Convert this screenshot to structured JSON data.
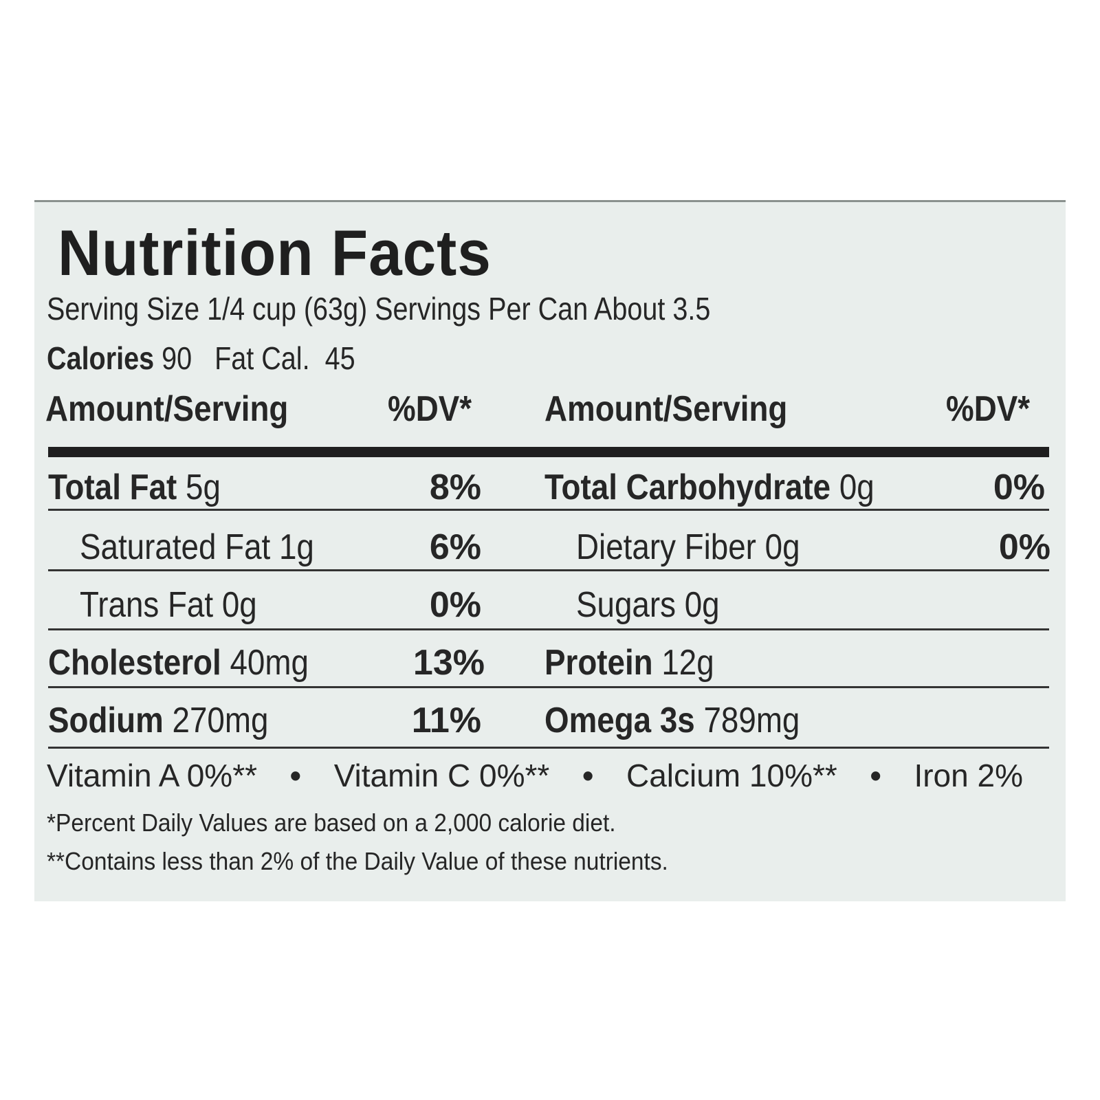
{
  "title": "Nutrition Facts",
  "serving_line": "Serving Size 1/4 cup (63g) Servings Per Can About 3.5",
  "calories": {
    "label": "Calories",
    "value": "90",
    "fat_label": "Fat Cal.",
    "fat_value": "45"
  },
  "headers": {
    "amount": "Amount/Serving",
    "dv": "%DV*"
  },
  "left_rows": [
    {
      "name": "Total Fat",
      "amount": "5g",
      "dv": "8%"
    },
    {
      "name": "Saturated Fat",
      "amount": "1g",
      "dv": "6%"
    },
    {
      "name": "Trans Fat",
      "amount": "0g",
      "dv": "0%"
    },
    {
      "name": "Cholesterol",
      "amount": "40mg",
      "dv": "13%"
    },
    {
      "name": "Sodium",
      "amount": "270mg",
      "dv": "11%"
    }
  ],
  "right_rows": [
    {
      "name": "Total Carbohydrate",
      "amount": "0g",
      "dv": "0%"
    },
    {
      "name": "Dietary Fiber",
      "amount": "0g",
      "dv": "0%"
    },
    {
      "name": "Sugars",
      "amount": "0g",
      "dv": ""
    },
    {
      "name": "Protein",
      "amount": "12g",
      "dv": ""
    },
    {
      "name": "Omega 3s",
      "amount": "789mg",
      "dv": ""
    }
  ],
  "vitamins": [
    "Vitamin A 0%**",
    "Vitamin C 0%**",
    "Calcium 10%**",
    "Iron 2%"
  ],
  "vitamin_separator": "•",
  "footnotes": [
    "*Percent Daily Values are based on a 2,000 calorie diet.",
    "**Contains less than 2% of the Daily Value of these nutrients."
  ]
}
